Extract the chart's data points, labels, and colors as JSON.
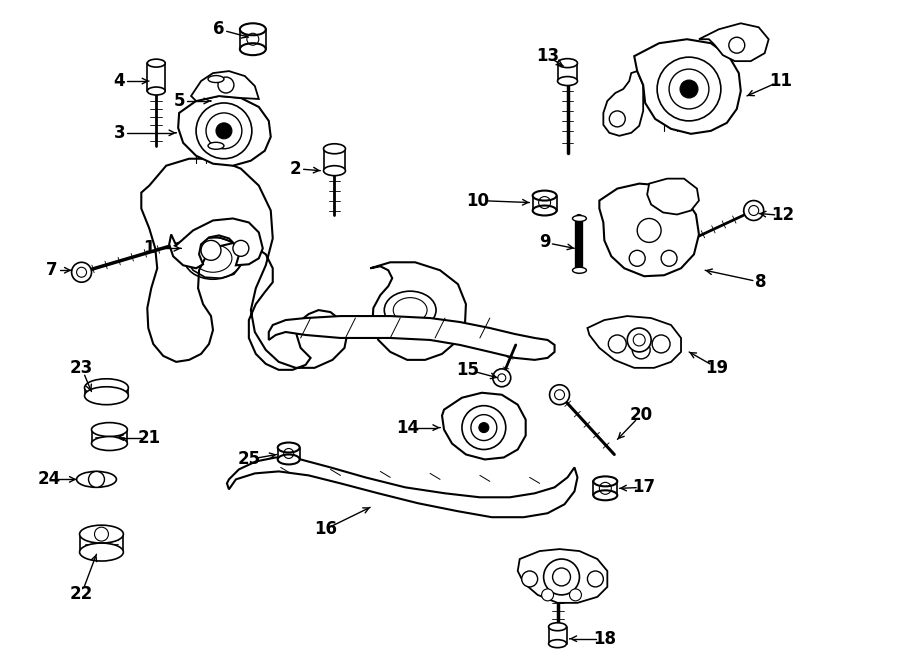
{
  "background_color": "#ffffff",
  "line_color": "#000000",
  "line_width": 1.2,
  "fig_width": 9.0,
  "fig_height": 6.61
}
